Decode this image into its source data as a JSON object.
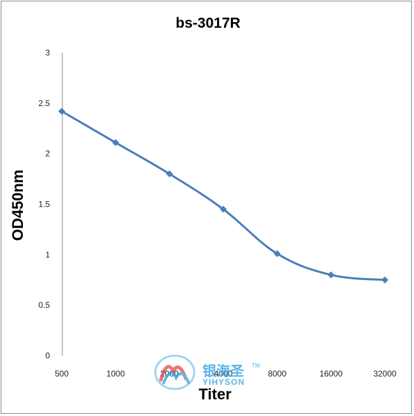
{
  "chart_data": {
    "type": "line",
    "title": "bs-3017R",
    "xlabel": "Titer",
    "ylabel": "OD450nm",
    "categories": [
      "500",
      "1000",
      "2000",
      "4000",
      "8000",
      "16000",
      "32000"
    ],
    "series": [
      {
        "values": [
          2.42,
          2.11,
          1.8,
          1.45,
          1.01,
          0.8,
          0.75
        ]
      }
    ],
    "ylim": [
      0,
      3
    ],
    "yticks": [
      "0",
      "0.5",
      "1",
      "1.5",
      "2",
      "2.5",
      "3"
    ],
    "grid": false,
    "legend": "none",
    "line_color": "#4a7ebb",
    "marker": "diamond"
  },
  "watermark": {
    "cn": "银海圣",
    "en": "YIHYSON",
    "tm": "TM"
  }
}
